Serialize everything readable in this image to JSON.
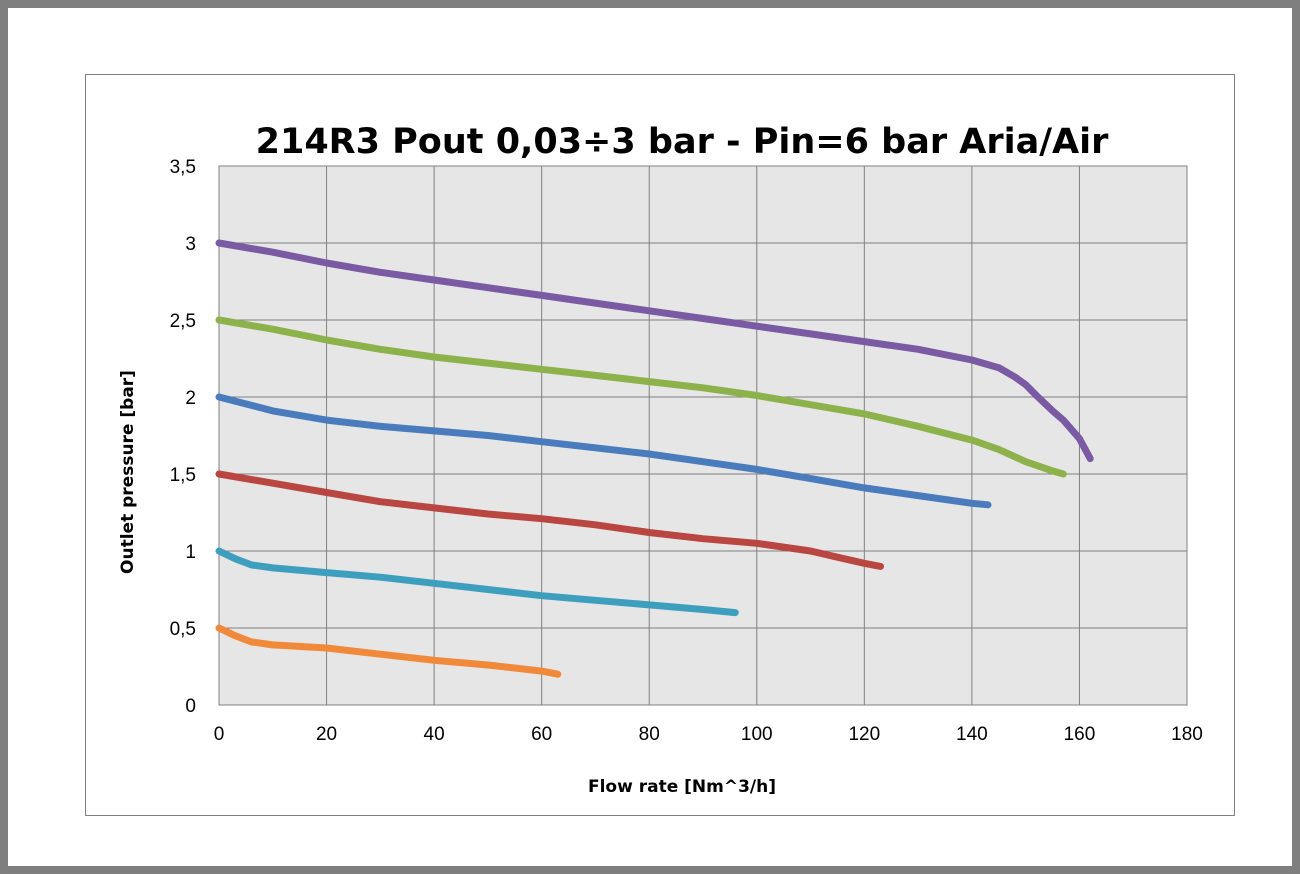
{
  "chart_data": {
    "type": "line",
    "title": "214R3  Pout 0,03÷3 bar - Pin=6 bar  Aria/Air",
    "xlabel": "Flow rate [Nm^3/h]",
    "ylabel": "Outlet pressure [bar]",
    "xlim": [
      0,
      180
    ],
    "ylim": [
      0,
      3.5
    ],
    "x_ticks": [
      "0",
      "20",
      "40",
      "60",
      "80",
      "100",
      "120",
      "140",
      "160",
      "180"
    ],
    "y_ticks": [
      "0",
      "0,5",
      "1",
      "1,5",
      "2",
      "2,5",
      "3",
      "3,5"
    ],
    "grid": true,
    "plot_background": "#e6e6e6",
    "grid_color": "#808080",
    "series": [
      {
        "color": "#7a5ba3",
        "x": [
          0,
          10,
          20,
          30,
          40,
          50,
          60,
          70,
          80,
          90,
          100,
          110,
          120,
          130,
          140,
          145,
          148,
          150,
          152,
          155,
          157,
          160,
          162
        ],
        "y": [
          3.0,
          2.94,
          2.87,
          2.81,
          2.76,
          2.71,
          2.66,
          2.61,
          2.56,
          2.51,
          2.46,
          2.41,
          2.36,
          2.31,
          2.24,
          2.19,
          2.13,
          2.08,
          2.01,
          1.91,
          1.85,
          1.73,
          1.6
        ]
      },
      {
        "color": "#8db24b",
        "x": [
          0,
          10,
          20,
          30,
          40,
          50,
          60,
          70,
          80,
          90,
          100,
          110,
          120,
          130,
          140,
          145,
          150,
          155,
          157
        ],
        "y": [
          2.5,
          2.44,
          2.37,
          2.31,
          2.26,
          2.22,
          2.18,
          2.14,
          2.1,
          2.06,
          2.01,
          1.95,
          1.89,
          1.81,
          1.72,
          1.66,
          1.58,
          1.52,
          1.5
        ]
      },
      {
        "color": "#4a7cbd",
        "x": [
          0,
          10,
          20,
          30,
          40,
          50,
          60,
          70,
          80,
          90,
          100,
          110,
          120,
          130,
          140,
          143
        ],
        "y": [
          2.0,
          1.91,
          1.85,
          1.81,
          1.78,
          1.75,
          1.71,
          1.67,
          1.63,
          1.58,
          1.53,
          1.47,
          1.41,
          1.36,
          1.31,
          1.3
        ]
      },
      {
        "color": "#b94641",
        "x": [
          0,
          10,
          20,
          30,
          40,
          50,
          60,
          70,
          80,
          90,
          100,
          110,
          115,
          120,
          123
        ],
        "y": [
          1.5,
          1.44,
          1.38,
          1.32,
          1.28,
          1.24,
          1.21,
          1.17,
          1.12,
          1.08,
          1.05,
          1.0,
          0.96,
          0.92,
          0.9
        ]
      },
      {
        "color": "#3d9fbd",
        "x": [
          0,
          3,
          6,
          10,
          20,
          30,
          40,
          50,
          60,
          70,
          80,
          90,
          96
        ],
        "y": [
          1.0,
          0.95,
          0.91,
          0.89,
          0.86,
          0.83,
          0.79,
          0.75,
          0.71,
          0.68,
          0.65,
          0.62,
          0.6
        ]
      },
      {
        "color": "#f0893a",
        "x": [
          0,
          3,
          6,
          10,
          20,
          30,
          40,
          50,
          60,
          63
        ],
        "y": [
          0.5,
          0.45,
          0.41,
          0.39,
          0.37,
          0.33,
          0.29,
          0.26,
          0.22,
          0.2
        ]
      }
    ]
  }
}
